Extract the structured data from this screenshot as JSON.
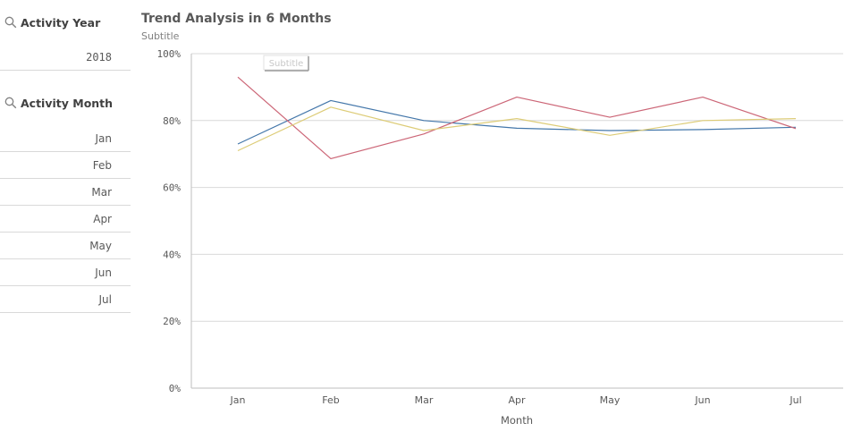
{
  "filters": {
    "year": {
      "title": "Activity Year",
      "icon": "search-icon",
      "value": "2018"
    },
    "month": {
      "title": "Activity Month",
      "icon": "search-icon",
      "items": [
        "Jan",
        "Feb",
        "Mar",
        "Apr",
        "May",
        "Jun",
        "Jul"
      ]
    }
  },
  "chart": {
    "title": "Trend Analysis in 6 Months",
    "subtitle": "Subtitle",
    "tooltip": "Subtitle"
  },
  "chart_data": {
    "type": "line",
    "title": "Trend Analysis in 6 Months",
    "subtitle": "Subtitle",
    "categories": [
      "Jan",
      "Feb",
      "Mar",
      "Apr",
      "May",
      "Jun",
      "Jul"
    ],
    "xlabel": "Month",
    "ylabel": "",
    "ylim": [
      0,
      1
    ],
    "yticks": [
      "0%",
      "20%",
      "40%",
      "60%",
      "80%",
      "100%"
    ],
    "grid": true,
    "series": [
      {
        "color": "#4477aa",
        "values": [
          0.73,
          0.86,
          0.8,
          0.777,
          0.77,
          0.773,
          0.78
        ]
      },
      {
        "color": "#cc6677",
        "values": [
          0.93,
          0.686,
          0.76,
          0.87,
          0.81,
          0.87,
          0.776
        ]
      },
      {
        "color": "#ddcc77",
        "values": [
          0.71,
          0.84,
          0.77,
          0.806,
          0.756,
          0.8,
          0.806
        ]
      }
    ]
  }
}
